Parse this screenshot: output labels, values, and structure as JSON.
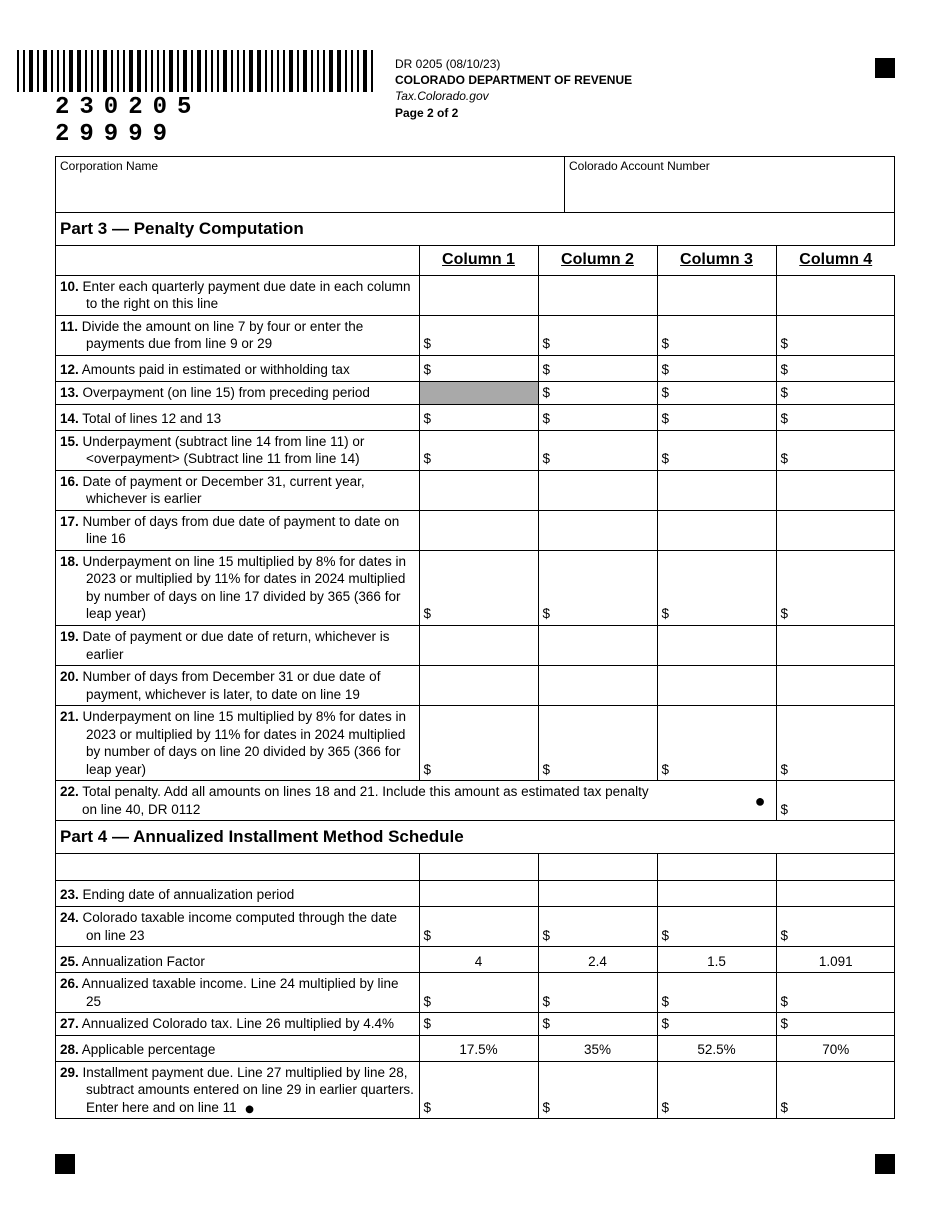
{
  "header": {
    "barcode_text": "230205  29999",
    "form_id": "DR 0205 (08/10/23)",
    "dept": "COLORADO DEPARTMENT OF REVENUE",
    "site": "Tax.Colorado.gov",
    "page": "Page 2 of 2"
  },
  "labels": {
    "corp_name": "Corporation Name",
    "acct_num": "Colorado Account Number"
  },
  "columns": [
    "Column 1",
    "Column 2",
    "Column 3",
    "Column 4"
  ],
  "part3": {
    "title": "Part 3 — Penalty Computation",
    "rows": [
      {
        "n": "10.",
        "text": "Enter each quarterly payment due date in each column to the right on this line",
        "dollar": false
      },
      {
        "n": "11.",
        "text": "Divide the amount on line 7 by four or enter the payments due from line 9 or 29",
        "dollar": true
      },
      {
        "n": "12.",
        "text": "Amounts paid in estimated or withholding tax",
        "dollar": true,
        "tall": true
      },
      {
        "n": "13.",
        "text": "Overpayment (on line 15) from preceding period",
        "dollar": true,
        "shade_first": true
      },
      {
        "n": "14.",
        "text": "Total of lines 12 and 13",
        "dollar": true,
        "tall": true
      },
      {
        "n": "15.",
        "text": "Underpayment (subtract line 14 from line 11) or <overpayment> (Subtract line 11 from line 14)",
        "dollar": true
      },
      {
        "n": "16.",
        "text": "Date of payment or December 31, current year, whichever is earlier",
        "dollar": false
      },
      {
        "n": "17.",
        "text": "Number of days from due date of payment to date on line 16",
        "dollar": false
      },
      {
        "n": "18.",
        "text": "Underpayment on line 15 multiplied by 8% for dates in 2023 or multiplied by 11% for dates in 2024 multiplied by number of days on line 17 divided by 365 (366 for leap year)",
        "dollar": true
      },
      {
        "n": "19.",
        "text": "Date of payment or due date of return, whichever is earlier",
        "dollar": false
      },
      {
        "n": "20.",
        "text": "Number of days from December 31 or due date of payment, whichever is later, to date on line 19",
        "dollar": false
      },
      {
        "n": "21.",
        "text": "Underpayment on line 15 multiplied by 8% for dates in 2023 or multiplied by 11% for dates in 2024 multiplied by number of days on line 20 divided by 365 (366 for leap year)",
        "dollar": true
      }
    ],
    "row22": {
      "n": "22.",
      "text": "Total penalty. Add all amounts on lines 18 and 21. Include this amount as estimated tax penalty on line 40, DR 0112"
    }
  },
  "part4": {
    "title": "Part 4 — Annualized Installment Method Schedule",
    "rows": [
      {
        "n": "23.",
        "text": "Ending date of annualization period",
        "dollar": false,
        "tall": true
      },
      {
        "n": "24.",
        "text": "Colorado taxable income computed through the date on line 23",
        "dollar": true
      },
      {
        "n": "25.",
        "text": "Annualization Factor",
        "dollar": false,
        "vals": [
          "4",
          "2.4",
          "1.5",
          "1.091"
        ],
        "tall": true
      },
      {
        "n": "26.",
        "text": "Annualized taxable income. Line 24 multiplied by line 25",
        "dollar": true
      },
      {
        "n": "27.",
        "text": "Annualized Colorado tax. Line 26 multiplied by 4.4%",
        "dollar": true
      },
      {
        "n": "28.",
        "text": "Applicable percentage",
        "dollar": false,
        "vals": [
          "17.5%",
          "35%",
          "52.5%",
          "70%"
        ],
        "tall": true
      },
      {
        "n": "29.",
        "text": "Installment payment due. Line 27 multiplied by line 28, subtract amounts entered on line 29 in earlier quarters. Enter here and on line 11",
        "dollar": true,
        "bullet": true
      }
    ]
  }
}
